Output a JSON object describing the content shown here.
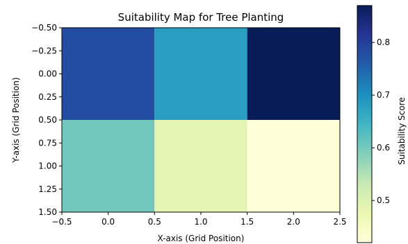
{
  "chart_data": {
    "type": "heatmap",
    "title": "Suitability Map for Tree Planting",
    "xlabel": "X-axis (Grid Position)",
    "ylabel": "Y-axis (Grid Position)",
    "colorbar_label": "Suitability Score",
    "colormap": "YlGnBu",
    "xlim": [
      -0.5,
      2.5
    ],
    "ylim": [
      1.5,
      -0.5
    ],
    "x_ticks": [
      "−0.5",
      "0.0",
      "0.5",
      "1.0",
      "1.5",
      "2.0",
      "2.5"
    ],
    "y_ticks": [
      "−0.50",
      "−0.25",
      "0.00",
      "0.25",
      "0.50",
      "0.75",
      "1.00",
      "1.25",
      "1.50"
    ],
    "colorbar_ticks": [
      "0.5",
      "0.6",
      "0.7",
      "0.8"
    ],
    "colorbar_range": [
      0.42,
      0.87
    ],
    "grid": false,
    "values": [
      [
        0.78,
        0.68,
        0.87
      ],
      [
        0.6,
        0.49,
        0.42
      ]
    ]
  }
}
